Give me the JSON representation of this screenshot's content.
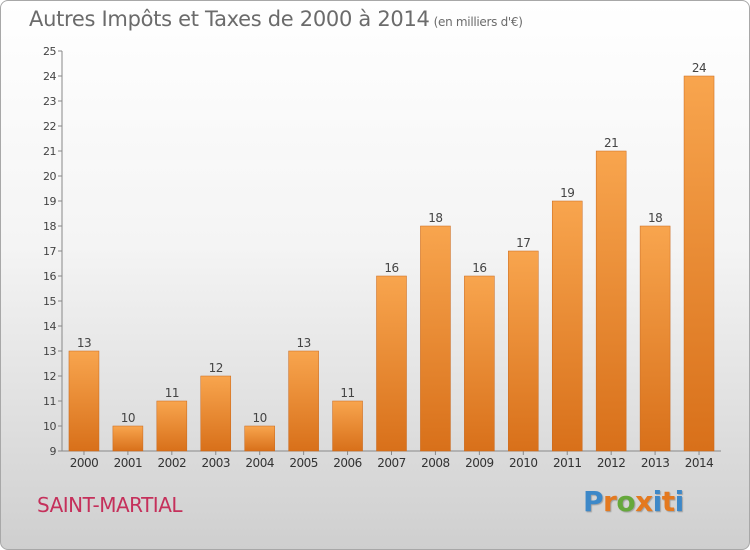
{
  "header": {
    "title": "Autres Impôts et Taxes de 2000 à 2014",
    "unit": "(en milliers d'€)"
  },
  "commune": "SAINT-MARTIAL",
  "logo": {
    "text": "Proxiti",
    "colors": [
      "#3d88c8",
      "#e4791f",
      "#65a83b",
      "#e4791f",
      "#3d88c8",
      "#e4791f",
      "#3d88c8"
    ]
  },
  "chart_data": {
    "type": "bar",
    "title": "Autres Impôts et Taxes de 2000 à 2014",
    "unit": "(en milliers d'€)",
    "categories": [
      "2000",
      "2001",
      "2002",
      "2003",
      "2004",
      "2005",
      "2006",
      "2007",
      "2008",
      "2009",
      "2010",
      "2011",
      "2012",
      "2013",
      "2014"
    ],
    "values": [
      13,
      10,
      11,
      12,
      10,
      13,
      11,
      16,
      18,
      16,
      17,
      19,
      21,
      18,
      24
    ],
    "ylim": [
      9,
      25
    ],
    "yticks": [
      9,
      10,
      11,
      12,
      13,
      14,
      15,
      16,
      17,
      18,
      19,
      20,
      21,
      22,
      23,
      24,
      25
    ],
    "grid": false,
    "bar_color_top": "#f8a54e",
    "bar_color_bottom": "#d8701a"
  }
}
